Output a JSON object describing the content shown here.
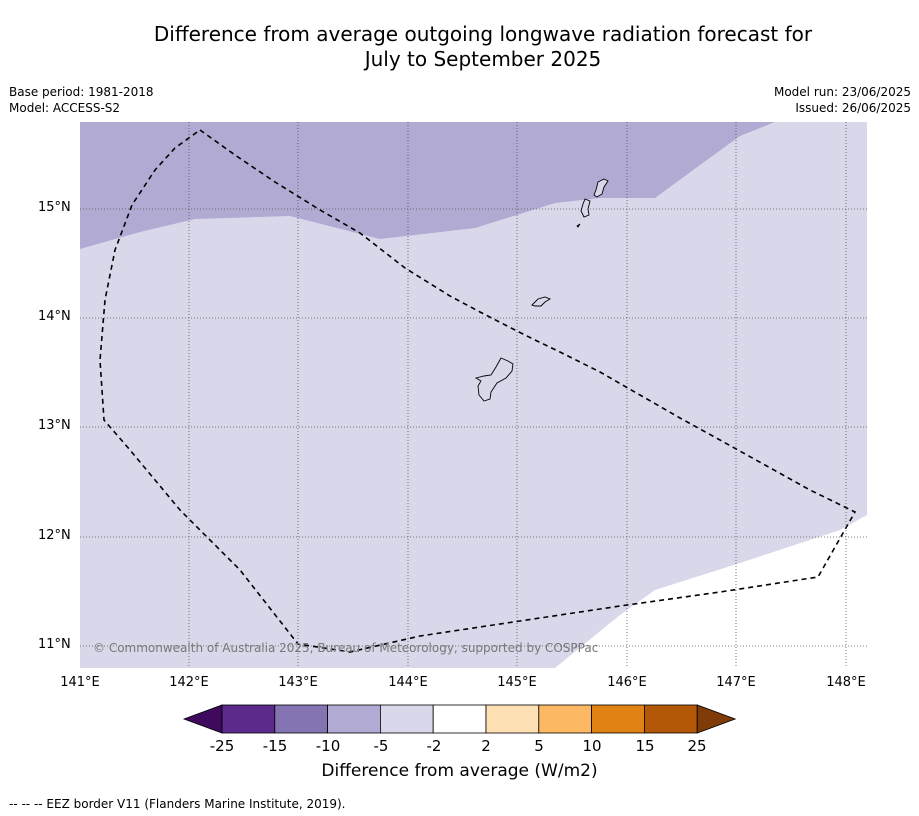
{
  "title": {
    "line1": "Difference from average outgoing longwave radiation forecast for",
    "line2": "July to September 2025"
  },
  "meta_left": {
    "base_period": "Base period: 1981-2018",
    "model": "Model: ACCESS-S2"
  },
  "meta_right": {
    "model_run": "Model run: 23/06/2025",
    "issued": "Issued: 26/06/2025"
  },
  "map": {
    "lat_labels": [
      "15°N",
      "14°N",
      "13°N",
      "12°N",
      "11°N"
    ],
    "lon_labels": [
      "141°E",
      "142°E",
      "143°E",
      "144°E",
      "145°E",
      "146°E",
      "147°E",
      "148°E"
    ],
    "copyright": "© Commonwealth of Australia 2025, Bureau of Meteorology, supported by COSPPac",
    "fill_colors": {
      "minus10_to_minus5": "#b1aad3",
      "minus5_to_minus2": "#d8d8ea",
      "minus2_to_2": "#ffffff"
    }
  },
  "colorbar": {
    "ticks": [
      "-25",
      "-15",
      "-10",
      "-5",
      "-2",
      "2",
      "5",
      "10",
      "15",
      "25"
    ],
    "colors": [
      "#3f0a5e",
      "#5b2a8b",
      "#8475b2",
      "#b1aad3",
      "#d8d8ea",
      "#ffffff",
      "#fde0b3",
      "#fdb863",
      "#e08314",
      "#b35806",
      "#7f3b08"
    ],
    "label": "Difference from average (W/m2)"
  },
  "footnote": "--  --  -- EEZ border V11 (Flanders Marine Institute, 2019)."
}
